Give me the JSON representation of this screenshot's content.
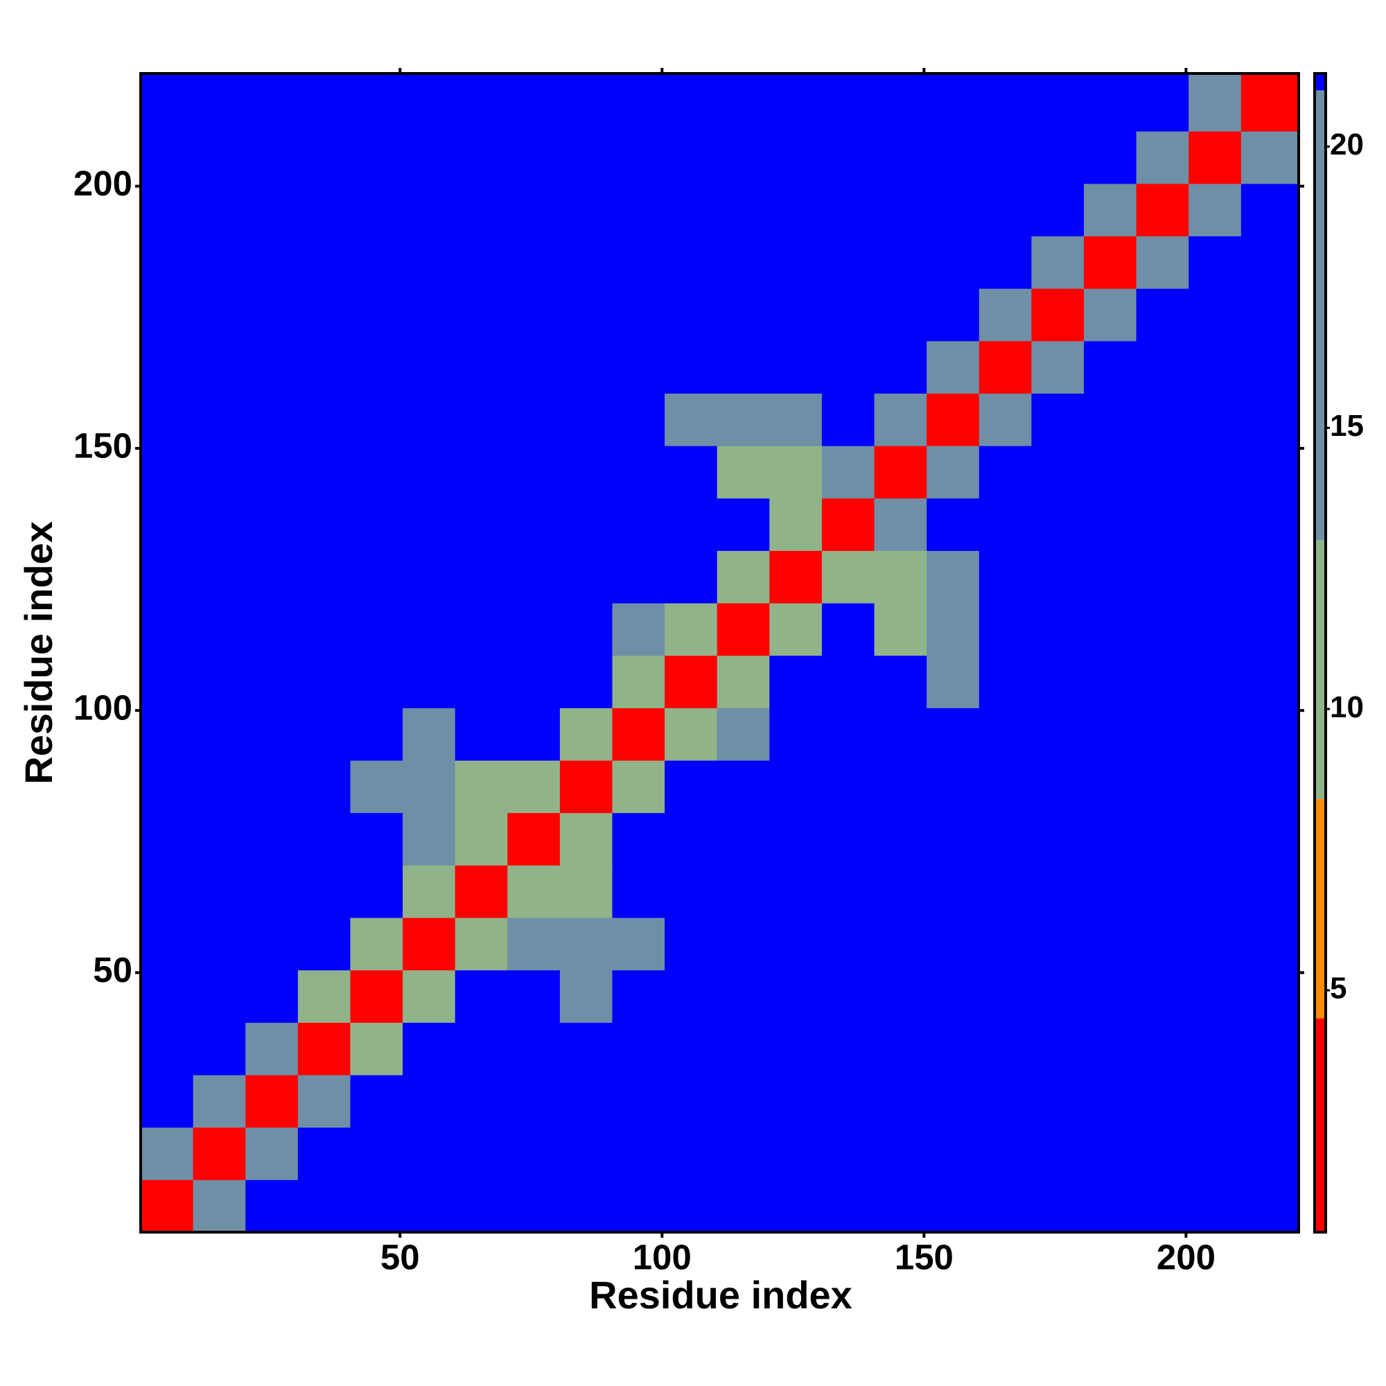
{
  "chart_data": {
    "type": "heatmap",
    "x_label": "Residue index",
    "y_label": "Residue index",
    "xlim": [
      0.5,
      221.5
    ],
    "ylim": [
      0.5,
      221.5
    ],
    "xticks": [
      50,
      100,
      150,
      200
    ],
    "yticks": [
      50,
      100,
      150,
      200
    ],
    "x_bins": [
      0.5,
      10.5,
      20.5,
      30.5,
      40.5,
      50.5,
      60.5,
      70.5,
      80.5,
      90.5,
      100.5,
      110.5,
      120.5,
      130.5,
      140.5,
      150.5,
      160.5,
      170.5,
      180.5,
      190.5,
      200.5,
      210.5,
      221.5
    ],
    "y_bins": [
      0.5,
      10.5,
      20.5,
      30.5,
      40.5,
      50.5,
      60.5,
      70.5,
      80.5,
      90.5,
      100.5,
      110.5,
      120.5,
      130.5,
      140.5,
      150.5,
      160.5,
      170.5,
      180.5,
      190.5,
      200.5,
      210.5,
      221.5
    ],
    "z": [
      [
        3,
        15,
        21,
        21,
        21,
        21,
        21,
        21,
        21,
        21,
        21,
        21,
        21,
        21,
        21,
        21,
        21,
        21,
        21,
        21,
        21,
        21
      ],
      [
        15,
        3,
        15,
        21,
        21,
        21,
        21,
        21,
        21,
        21,
        21,
        21,
        21,
        21,
        21,
        21,
        21,
        21,
        21,
        21,
        21,
        21
      ],
      [
        21,
        15,
        3,
        15,
        21,
        21,
        21,
        21,
        21,
        21,
        21,
        21,
        21,
        21,
        21,
        21,
        21,
        21,
        21,
        21,
        21,
        21
      ],
      [
        21,
        21,
        15,
        3,
        11,
        21,
        21,
        21,
        21,
        21,
        21,
        21,
        21,
        21,
        21,
        21,
        21,
        21,
        21,
        21,
        21,
        21
      ],
      [
        21,
        21,
        21,
        11,
        3,
        11,
        21,
        21,
        16,
        21,
        21,
        21,
        21,
        21,
        21,
        21,
        21,
        21,
        21,
        21,
        21,
        21
      ],
      [
        21,
        21,
        21,
        21,
        11,
        3,
        11,
        14,
        14,
        16,
        21,
        21,
        21,
        21,
        21,
        21,
        21,
        21,
        21,
        21,
        21,
        21
      ],
      [
        21,
        21,
        21,
        21,
        21,
        11,
        3,
        11,
        12,
        21,
        21,
        21,
        21,
        21,
        21,
        21,
        21,
        21,
        21,
        21,
        21,
        21
      ],
      [
        21,
        21,
        21,
        21,
        21,
        14,
        11,
        3,
        11,
        21,
        21,
        21,
        21,
        21,
        21,
        21,
        21,
        21,
        21,
        21,
        21,
        21
      ],
      [
        21,
        21,
        21,
        21,
        16,
        14,
        12,
        11,
        3,
        11,
        21,
        21,
        21,
        21,
        21,
        21,
        21,
        21,
        21,
        21,
        21,
        21
      ],
      [
        21,
        21,
        21,
        21,
        21,
        16,
        21,
        21,
        11,
        3,
        11,
        13,
        21,
        21,
        21,
        21,
        21,
        21,
        21,
        21,
        21,
        21
      ],
      [
        21,
        21,
        21,
        21,
        21,
        21,
        21,
        21,
        21,
        11,
        3,
        11,
        21,
        21,
        21,
        13,
        21,
        21,
        21,
        21,
        21,
        21
      ],
      [
        21,
        21,
        21,
        21,
        21,
        21,
        21,
        21,
        21,
        13,
        11,
        3,
        11,
        21,
        12,
        13,
        21,
        21,
        21,
        21,
        21,
        21
      ],
      [
        21,
        21,
        21,
        21,
        21,
        21,
        21,
        21,
        21,
        21,
        21,
        11,
        3,
        11,
        12,
        14,
        21,
        21,
        21,
        21,
        21,
        21
      ],
      [
        21,
        21,
        21,
        21,
        21,
        21,
        21,
        21,
        21,
        21,
        21,
        21,
        11,
        3,
        15,
        21,
        21,
        21,
        21,
        21,
        21,
        21
      ],
      [
        21,
        21,
        21,
        21,
        21,
        21,
        21,
        21,
        21,
        21,
        21,
        12,
        12,
        15,
        3,
        15,
        21,
        21,
        21,
        21,
        21,
        21
      ],
      [
        21,
        21,
        21,
        21,
        21,
        21,
        21,
        21,
        21,
        21,
        13,
        13,
        14,
        21,
        15,
        3,
        15,
        21,
        21,
        21,
        21,
        21
      ],
      [
        21,
        21,
        21,
        21,
        21,
        21,
        21,
        21,
        21,
        21,
        21,
        21,
        21,
        21,
        21,
        15,
        3,
        15,
        21,
        21,
        21,
        21
      ],
      [
        21,
        21,
        21,
        21,
        21,
        21,
        21,
        21,
        21,
        21,
        21,
        21,
        21,
        21,
        21,
        21,
        15,
        3,
        15,
        21,
        21,
        21
      ],
      [
        21,
        21,
        21,
        21,
        21,
        21,
        21,
        21,
        21,
        21,
        21,
        21,
        21,
        21,
        21,
        21,
        21,
        15,
        3,
        15,
        21,
        21
      ],
      [
        21,
        21,
        21,
        21,
        21,
        21,
        21,
        21,
        21,
        21,
        21,
        21,
        21,
        21,
        21,
        21,
        21,
        21,
        15,
        3,
        15,
        21
      ],
      [
        21,
        21,
        21,
        21,
        21,
        21,
        21,
        21,
        21,
        21,
        21,
        21,
        21,
        21,
        21,
        21,
        21,
        21,
        21,
        15,
        3,
        15
      ],
      [
        21,
        21,
        21,
        21,
        21,
        21,
        21,
        21,
        21,
        21,
        21,
        21,
        21,
        21,
        21,
        21,
        21,
        21,
        21,
        21,
        15,
        3
      ]
    ],
    "color_bounds": [
      0.7,
      4.5,
      8.4,
      13,
      21,
      21.3
    ],
    "colors": [
      "#ff0000",
      "#ff8c00",
      "#91b38a",
      "#6f8fa6",
      "#0000ff"
    ],
    "colorbar_ticks": [
      5,
      10,
      15,
      20
    ]
  }
}
